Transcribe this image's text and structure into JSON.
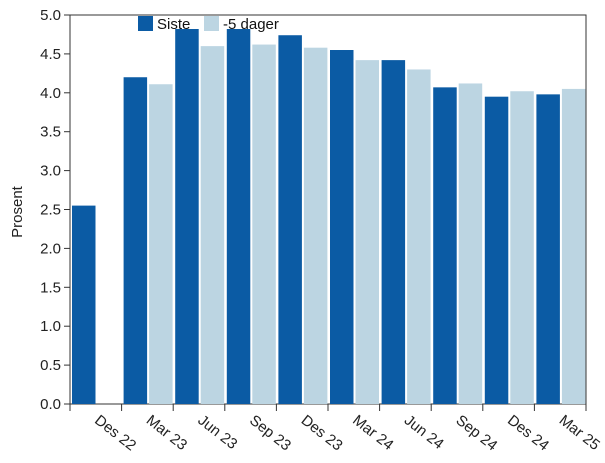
{
  "chart_data": {
    "type": "bar",
    "title": "",
    "xlabel": "",
    "ylabel": "Prosent",
    "ylim": [
      0,
      5.0
    ],
    "yticks": [
      "0.0",
      "0.5",
      "1.0",
      "1.5",
      "2.0",
      "2.5",
      "3.0",
      "3.5",
      "4.0",
      "4.5",
      "5.0"
    ],
    "categories": [
      "Des 22",
      "Mar 23",
      "Jun 23",
      "Sep 23",
      "Des 23",
      "Mar 24",
      "Jun 24",
      "Sep 24",
      "Des 24",
      "Mar 25"
    ],
    "series": [
      {
        "name": "Siste",
        "color": "#0b5ba4",
        "values": [
          2.55,
          4.2,
          4.82,
          4.82,
          4.74,
          4.55,
          4.42,
          4.07,
          3.95,
          3.98
        ]
      },
      {
        "name": "-5 dager",
        "color": "#bcd5e2",
        "values": [
          null,
          4.11,
          4.6,
          4.62,
          4.58,
          4.42,
          4.3,
          4.12,
          4.02,
          4.05
        ]
      }
    ],
    "legend": "top-center",
    "grid": false
  }
}
